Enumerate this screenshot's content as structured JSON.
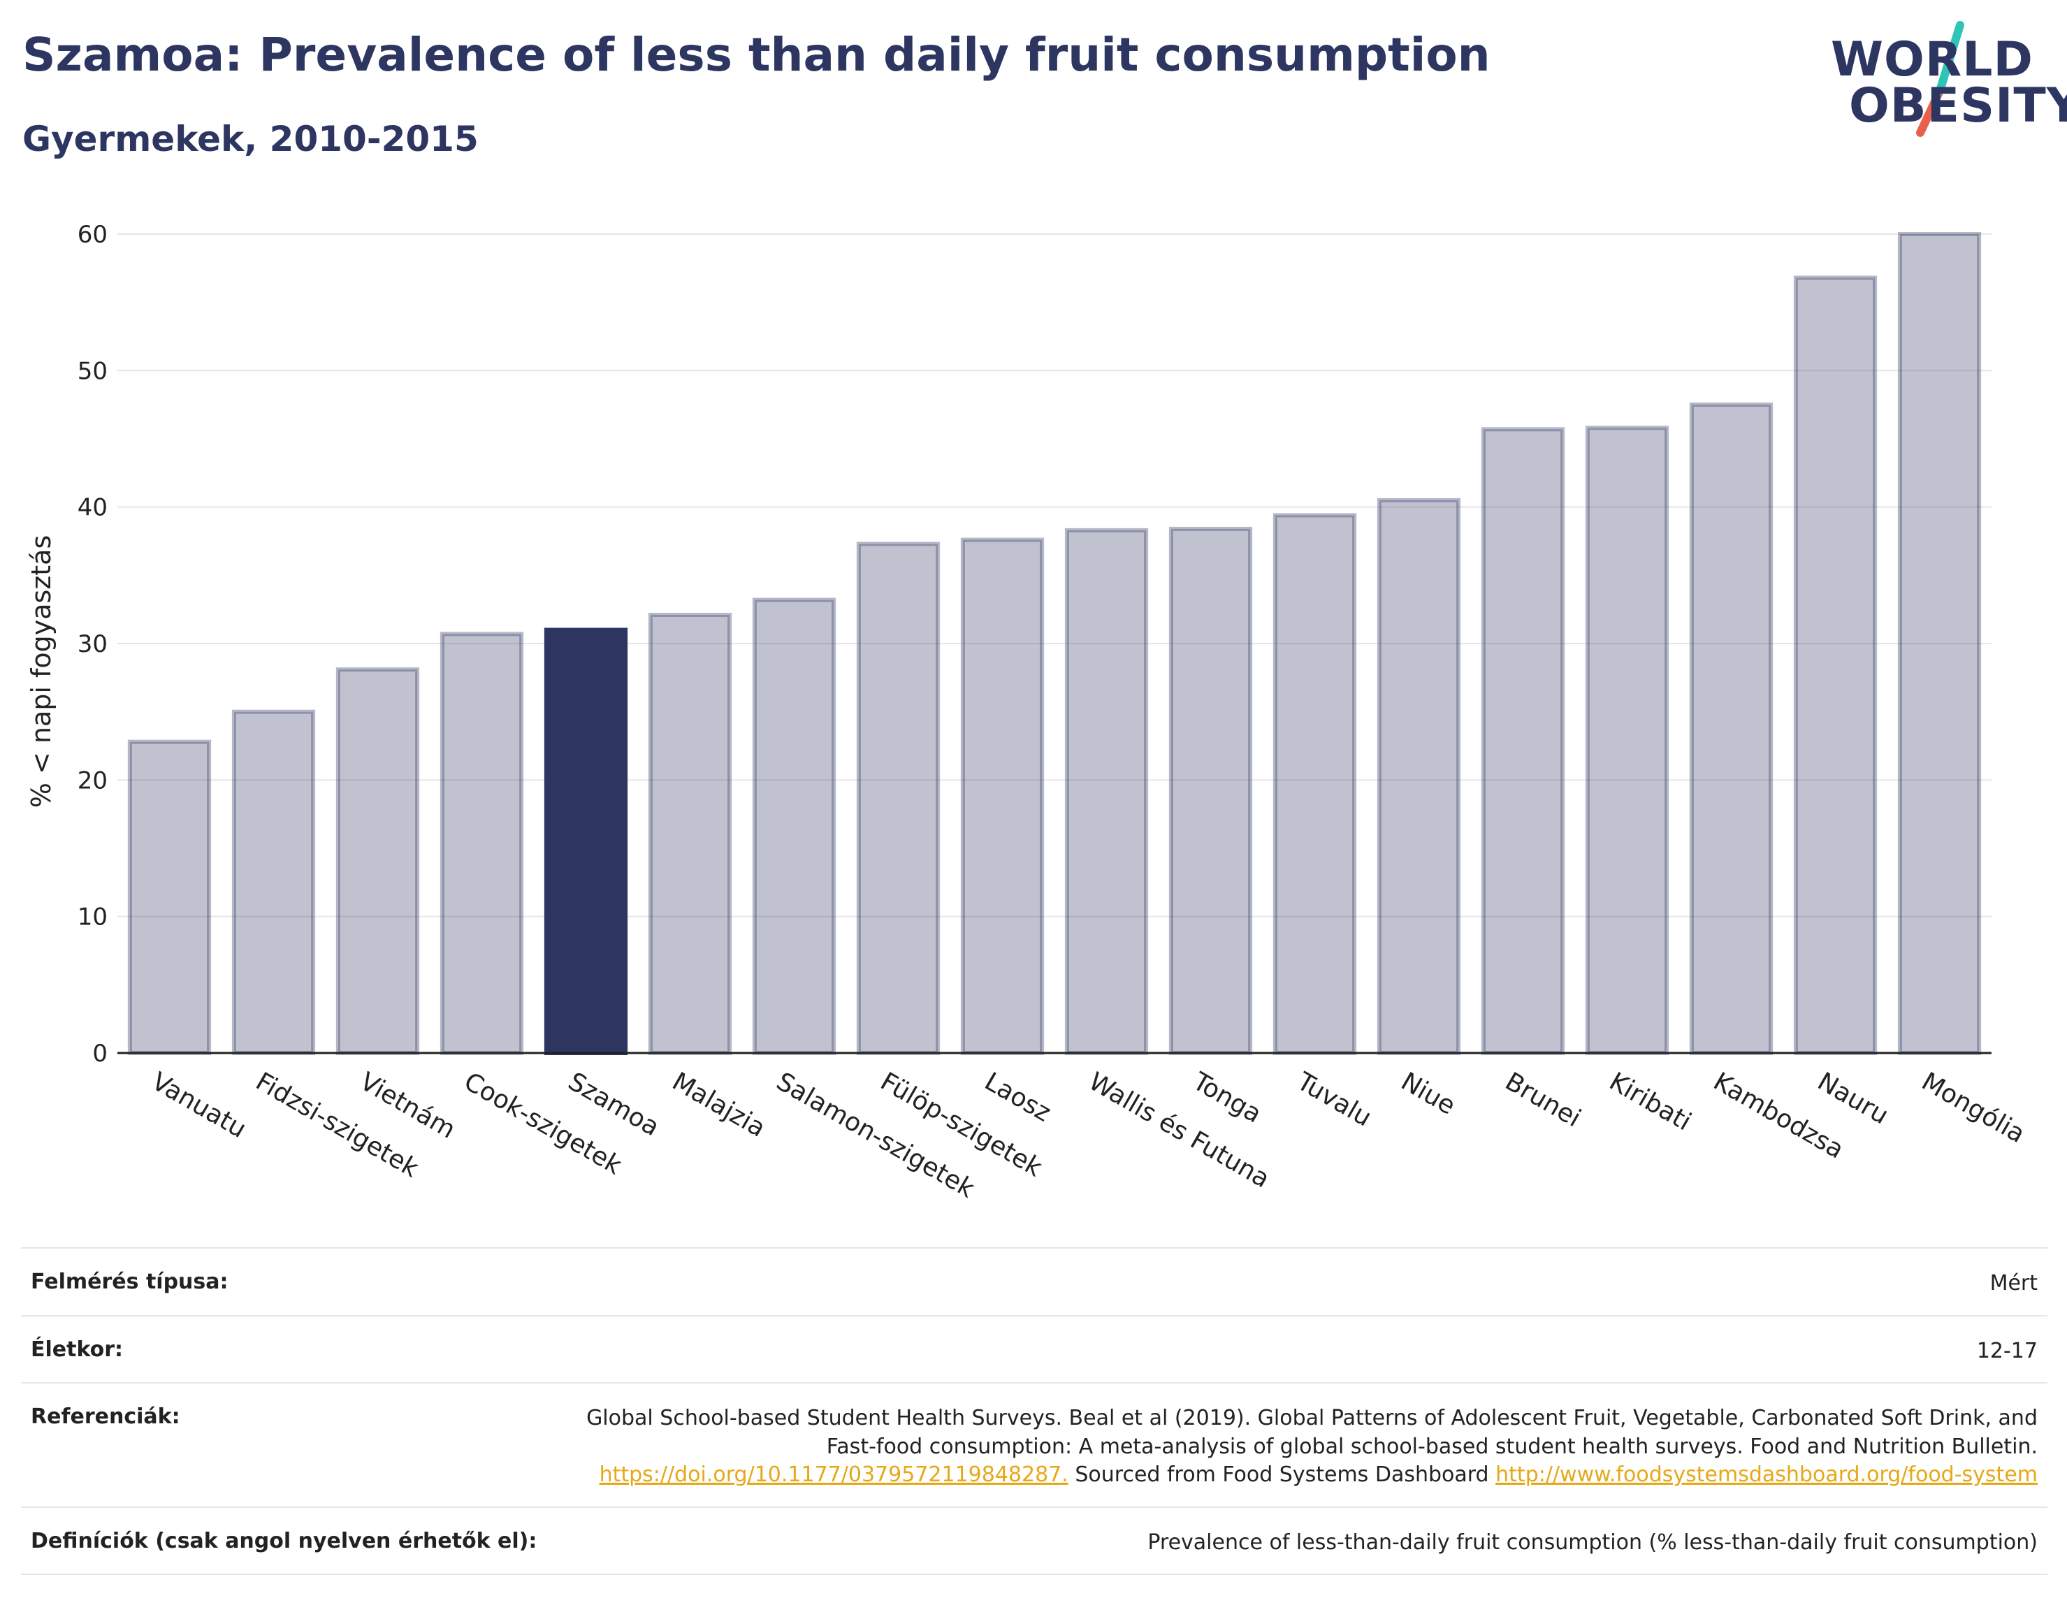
{
  "title": "Szamoa: Prevalence of less than daily fruit consumption",
  "subtitle": "Gyermekek, 2010-2015",
  "logo": {
    "line1": "WORLD",
    "line2": "OBESITY",
    "colors": {
      "text": "#2d3561",
      "slash_top": "#2ec4b6",
      "slash_bottom": "#e8604c"
    }
  },
  "chart_data": {
    "type": "bar",
    "ylabel": "% < napi fogyasztás",
    "ylim": [
      0,
      60
    ],
    "yticks": [
      0,
      10,
      20,
      30,
      40,
      50,
      60
    ],
    "grid": true,
    "highlight": "Szamoa",
    "colors": {
      "bar": "#2d3561",
      "bar_fill_opacity": 0.3,
      "highlight": "#2d3561"
    },
    "categories": [
      "Vanuatu",
      "Fidzsi-szigetek",
      "Vietnám",
      "Cook-szigetek",
      "Szamoa",
      "Malajzia",
      "Salamon-szigetek",
      "Fülöp-szigetek",
      "Laosz",
      "Wallis és Futuna",
      "Tonga",
      "Tuvalu",
      "Niue",
      "Brunei",
      "Kiribati",
      "Kambodzsa",
      "Nauru",
      "Mongólia"
    ],
    "values": [
      22.8,
      25.0,
      28.1,
      30.7,
      31.0,
      32.1,
      33.2,
      37.3,
      37.6,
      38.3,
      38.4,
      39.4,
      40.5,
      45.7,
      45.8,
      47.5,
      56.8,
      60.0
    ]
  },
  "info": {
    "survey_type": {
      "label": "Felmérés típusa:",
      "value": "Mért"
    },
    "age": {
      "label": "Életkor:",
      "value": "12-17"
    },
    "references": {
      "label": "Referenciák:",
      "text1": "Global School-based Student Health Surveys. Beal et al (2019). Global Patterns of Adolescent Fruit, Vegetable, Carbonated Soft Drink, and Fast-food consumption: A meta-analysis of global school-based student health surveys. Food and Nutrition Bulletin.",
      "link1": "https://doi.org/10.1177/0379572119848287.",
      "text2": "Sourced from Food Systems Dashboard",
      "link2": "http://www.foodsystemsdashboard.org/food-system"
    },
    "definitions": {
      "label": "Definíciók (csak angol nyelven érhetők el):",
      "value": "Prevalence of less-than-daily fruit consumption (% less-than-daily fruit consumption)"
    }
  }
}
